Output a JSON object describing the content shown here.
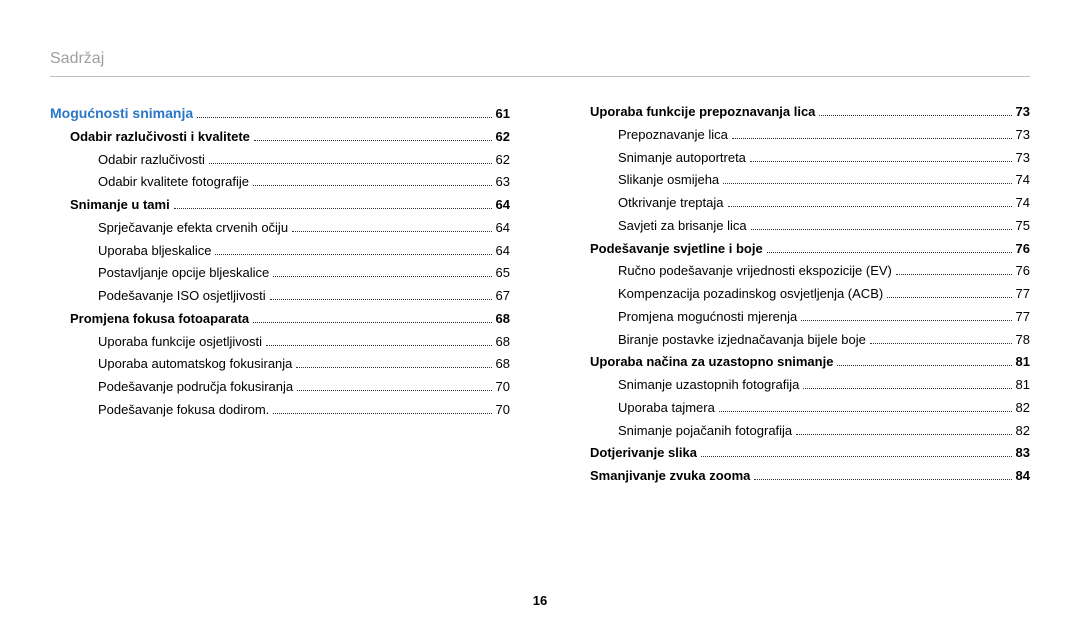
{
  "header": {
    "title": "Sadržaj"
  },
  "pageNumber": "16",
  "colors": {
    "header": "#a0a0a0",
    "section": "#2a77c7",
    "text": "#000000",
    "rule": "#c0c0c0"
  },
  "leftColumn": [
    {
      "level": "section-title",
      "label": "Mogućnosti snimanja",
      "page": "61"
    },
    {
      "level": "lvl1",
      "label": "Odabir razlučivosti i kvalitete",
      "page": "62"
    },
    {
      "level": "lvl2",
      "label": "Odabir razlučivosti",
      "page": "62"
    },
    {
      "level": "lvl2",
      "label": "Odabir kvalitete fotografije",
      "page": "63"
    },
    {
      "level": "lvl1",
      "label": "Snimanje u tami",
      "page": "64"
    },
    {
      "level": "lvl2",
      "label": "Sprječavanje efekta crvenih očiju",
      "page": "64"
    },
    {
      "level": "lvl2",
      "label": "Uporaba bljeskalice",
      "page": "64"
    },
    {
      "level": "lvl2",
      "label": "Postavljanje opcije bljeskalice",
      "page": "65"
    },
    {
      "level": "lvl2",
      "label": "Podešavanje ISO osjetljivosti",
      "page": "67"
    },
    {
      "level": "lvl1",
      "label": "Promjena fokusa fotoaparata",
      "page": "68"
    },
    {
      "level": "lvl2",
      "label": "Uporaba funkcije osjetljivosti",
      "page": "68"
    },
    {
      "level": "lvl2",
      "label": "Uporaba automatskog fokusiranja",
      "page": "68"
    },
    {
      "level": "lvl2",
      "label": "Podešavanje područja fokusiranja",
      "page": "70"
    },
    {
      "level": "lvl2",
      "label": "Podešavanje fokusa dodirom.",
      "page": "70"
    }
  ],
  "rightColumn": [
    {
      "level": "lvl1",
      "label": "Uporaba funkcije prepoznavanja lica",
      "page": "73"
    },
    {
      "level": "lvl2",
      "label": "Prepoznavanje lica",
      "page": "73"
    },
    {
      "level": "lvl2",
      "label": "Snimanje autoportreta",
      "page": "73"
    },
    {
      "level": "lvl2",
      "label": "Slikanje osmijeha",
      "page": "74"
    },
    {
      "level": "lvl2",
      "label": "Otkrivanje treptaja",
      "page": "74"
    },
    {
      "level": "lvl2",
      "label": "Savjeti za brisanje lica",
      "page": "75"
    },
    {
      "level": "lvl1",
      "label": "Podešavanje svjetline i boje",
      "page": "76"
    },
    {
      "level": "lvl2",
      "label": "Ručno podešavanje vrijednosti ekspozicije (EV)",
      "page": "76"
    },
    {
      "level": "lvl2",
      "label": "Kompenzacija pozadinskog osvjetljenja (ACB)",
      "page": "77"
    },
    {
      "level": "lvl2",
      "label": "Promjena mogućnosti mjerenja",
      "page": "77"
    },
    {
      "level": "lvl2",
      "label": "Biranje postavke izjednačavanja bijele boje",
      "page": "78"
    },
    {
      "level": "lvl1",
      "label": "Uporaba načina za uzastopno snimanje",
      "page": "81"
    },
    {
      "level": "lvl2",
      "label": "Snimanje uzastopnih fotografija",
      "page": "81"
    },
    {
      "level": "lvl2",
      "label": "Uporaba tajmera",
      "page": "82"
    },
    {
      "level": "lvl2",
      "label": "Snimanje pojačanih fotografija",
      "page": "82"
    },
    {
      "level": "lvl1",
      "label": "Dotjerivanje slika",
      "page": "83"
    },
    {
      "level": "lvl1",
      "label": "Smanjivanje zvuka zooma",
      "page": "84"
    }
  ]
}
